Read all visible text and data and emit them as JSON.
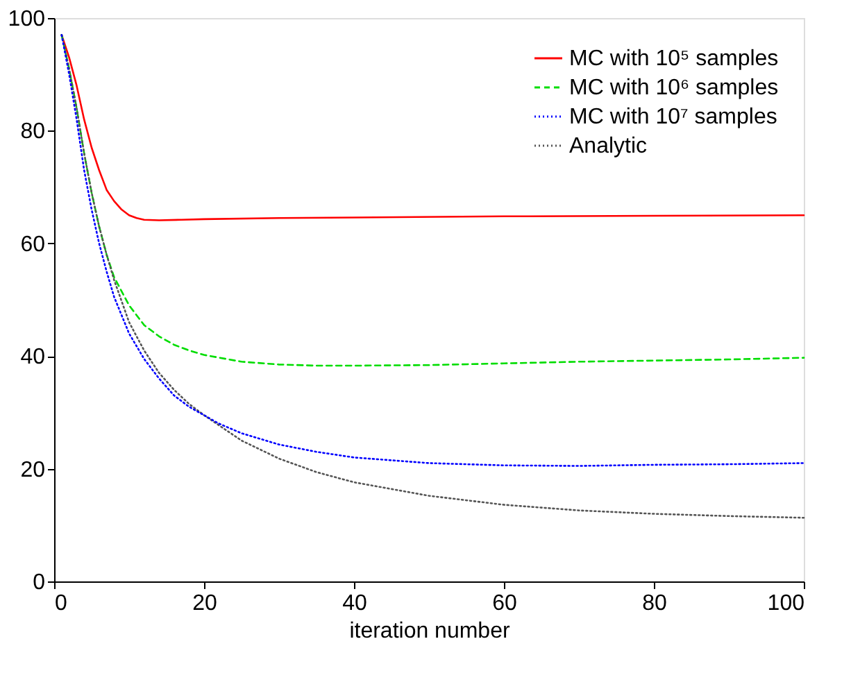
{
  "chart_data": {
    "type": "line",
    "xlabel": "iteration number",
    "xlim": [
      0,
      100
    ],
    "ylim": [
      0,
      100
    ],
    "xticks": [
      0,
      20,
      40,
      60,
      80,
      100
    ],
    "yticks": [
      0,
      20,
      40,
      60,
      80,
      100
    ],
    "grid": false,
    "legend": "top right",
    "marker": "none",
    "series": [
      {
        "name": "MC with 10⁵ samples",
        "color": "#ff0000",
        "line_style": "solid",
        "x": [
          1,
          2,
          3,
          4,
          5,
          6,
          7,
          8,
          9,
          10,
          11,
          12,
          14,
          17,
          20,
          30,
          40,
          60,
          80,
          100
        ],
        "values": [
          97,
          93,
          88,
          82,
          77,
          73,
          69.5,
          67.5,
          66,
          65,
          64.5,
          64.2,
          64.1,
          64.2,
          64.3,
          64.5,
          64.6,
          64.8,
          64.9,
          65
        ]
      },
      {
        "name": "MC with 10⁶ samples",
        "color": "#00dd00",
        "line_style": "dashed",
        "x": [
          1,
          2,
          3,
          4,
          5,
          6,
          7,
          8,
          10,
          12,
          14,
          16,
          18,
          20,
          25,
          30,
          35,
          40,
          50,
          60,
          70,
          80,
          90,
          100
        ],
        "values": [
          97,
          91,
          84,
          76,
          69,
          63,
          58,
          54,
          49,
          45.5,
          43.5,
          42,
          41,
          40.2,
          39,
          38.5,
          38.3,
          38.3,
          38.4,
          38.7,
          39,
          39.2,
          39.4,
          39.7
        ]
      },
      {
        "name": "MC with 10⁷ samples",
        "color": "#0000ff",
        "line_style": "dotted",
        "x": [
          1,
          2,
          3,
          4,
          5,
          6,
          7,
          8,
          10,
          12,
          14,
          16,
          18,
          20,
          22,
          25,
          30,
          35,
          40,
          50,
          60,
          70,
          80,
          90,
          100
        ],
        "values": [
          97,
          90,
          82,
          73,
          66,
          60,
          55,
          50.5,
          44,
          39.5,
          36,
          33,
          31,
          29.5,
          28,
          26.3,
          24.3,
          23,
          22,
          21,
          20.6,
          20.5,
          20.7,
          20.8,
          21
        ]
      },
      {
        "name": "Analytic",
        "color": "#555555",
        "line_style": "dotted",
        "x": [
          1,
          2,
          3,
          4,
          5,
          6,
          7,
          8,
          10,
          12,
          14,
          16,
          18,
          20,
          25,
          30,
          35,
          40,
          50,
          60,
          70,
          80,
          90,
          100
        ],
        "values": [
          97,
          91,
          84,
          76,
          69,
          63,
          58,
          53.5,
          46,
          41,
          37,
          34,
          31.5,
          29.5,
          25,
          21.8,
          19.4,
          17.6,
          15.2,
          13.6,
          12.6,
          12,
          11.6,
          11.3
        ]
      }
    ]
  }
}
